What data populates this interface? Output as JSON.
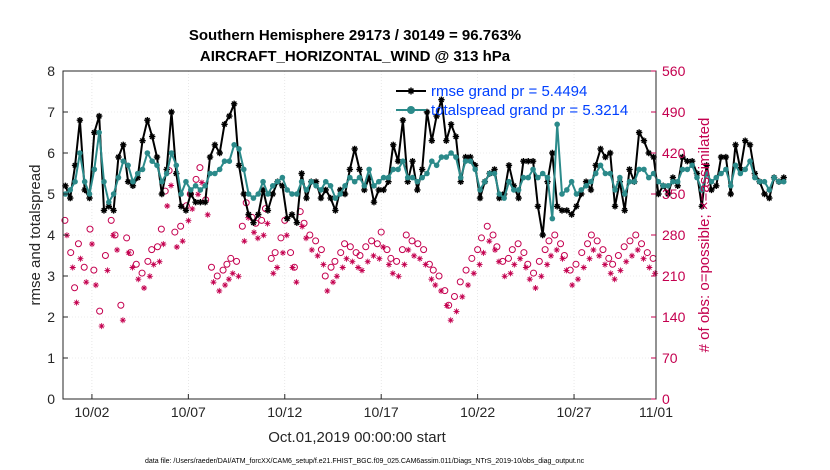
{
  "chart_data": {
    "type": "line",
    "title_line1": "Southern Hemisphere 29173 / 30149 = 96.763%",
    "title_line2": "AIRCRAFT_HORIZONTAL_WIND @ 313 hPa",
    "xlabel": "Oct.01,2019 00:00:00 start",
    "ylabel": "rmse and totalspread",
    "ylabel_right": "# of obs: o=possible; ×=assimilated",
    "footer": "data file: /Users/raeder/DAI/ATM_forcXX/CAM6_setup/f.e21.FHIST_BGC.f09_025.CAM6assim.011/Diags_NTrS_2019-10/obs_diag_output.nc",
    "xlim": [
      0.5,
      31.25
    ],
    "ylim": [
      0,
      8
    ],
    "ylim_right": [
      0,
      560
    ],
    "x_ticks": [
      {
        "v": 2,
        "label": "10/02"
      },
      {
        "v": 7,
        "label": "10/07"
      },
      {
        "v": 12,
        "label": "10/12"
      },
      {
        "v": 17,
        "label": "10/17"
      },
      {
        "v": 22,
        "label": "10/22"
      },
      {
        "v": 27,
        "label": "10/27"
      },
      {
        "v": 32,
        "label": "11/01"
      }
    ],
    "y_ticks": [
      "0",
      "1",
      "2",
      "3",
      "4",
      "5",
      "6",
      "7",
      "8"
    ],
    "y_ticks_right": [
      "0",
      "70",
      "140",
      "210",
      "280",
      "350",
      "420",
      "490",
      "560"
    ],
    "x_start": 0.625,
    "x_step": 0.25,
    "series": [
      {
        "name": "rmse grand pr = 5.4494",
        "color": "#000000",
        "marker": "star",
        "values": [
          5.2,
          4.9,
          5.7,
          6.8,
          5.1,
          4.9,
          6.5,
          6.9,
          4.6,
          4.7,
          4.6,
          5.9,
          6.2,
          5.3,
          5.2,
          5.4,
          6.3,
          6.8,
          6.4,
          5.9,
          5.0,
          5.6,
          7.0,
          5.5,
          4.7,
          4.6,
          5.0,
          4.8,
          4.8,
          4.8,
          5.9,
          6.2,
          6.0,
          6.7,
          6.9,
          7.2,
          5.7,
          5.0,
          4.5,
          4.3,
          4.5,
          5.1,
          4.6,
          5.0,
          5.3,
          5.2,
          4.4,
          4.5,
          4.3,
          5.5,
          4.9,
          5.3,
          5.3,
          4.9,
          5.1,
          4.9,
          4.6,
          5.1,
          5.0,
          5.6,
          6.1,
          5.6,
          5.1,
          5.4,
          4.8,
          5.1,
          5.1,
          5.3,
          6.2,
          5.8,
          6.8,
          5.3,
          5.8,
          5.1,
          5.6,
          7.0,
          6.3,
          6.9,
          7.3,
          6.3,
          6.7,
          6.4,
          5.3,
          5.9,
          5.9,
          5.7,
          4.9,
          5.3,
          5.5,
          5.6,
          4.9,
          5.0,
          5.7,
          5.2,
          4.9,
          5.8,
          5.8,
          5.8,
          4.7,
          4.0,
          5.3,
          6.0,
          4.7,
          4.6,
          4.6,
          4.5,
          4.7,
          5.0,
          5.3,
          5.1,
          5.7,
          6.1,
          5.9,
          6.0,
          4.7,
          5.3,
          4.6,
          5.6,
          5.3,
          6.5,
          6.3,
          6.0,
          5.9,
          5.0,
          5.2,
          5.0,
          5.4,
          5.2,
          5.9,
          5.8,
          5.8,
          5.5,
          4.7,
          5.7,
          5.1,
          5.2,
          5.9,
          5.9,
          5.0,
          6.2,
          5.6,
          6.3,
          6.2,
          5.5,
          5.3,
          5.0,
          4.9,
          5.4,
          5.3,
          5.4
        ]
      },
      {
        "name": "totalspread grand pr = 5.3214",
        "color": "#2b8a8a",
        "marker": "dot",
        "values": [
          5.0,
          5.1,
          5.3,
          6.0,
          5.3,
          5.0,
          5.6,
          6.5,
          5.3,
          4.8,
          5.0,
          5.4,
          5.8,
          5.7,
          5.3,
          5.5,
          5.6,
          6.0,
          5.8,
          5.7,
          5.3,
          5.5,
          6.0,
          5.7,
          5.0,
          5.3,
          5.1,
          5.2,
          5.1,
          5.2,
          5.5,
          5.5,
          5.6,
          5.8,
          5.8,
          6.2,
          6.1,
          5.6,
          5.0,
          4.9,
          5.0,
          5.3,
          5.0,
          5.2,
          5.3,
          5.4,
          5.1,
          5.0,
          5.0,
          5.3,
          5.1,
          5.3,
          5.2,
          5.1,
          5.3,
          5.2,
          4.9,
          5.0,
          5.2,
          5.4,
          5.3,
          5.4,
          5.2,
          5.6,
          5.2,
          5.3,
          5.4,
          5.4,
          5.6,
          5.6,
          5.8,
          5.4,
          5.4,
          5.3,
          5.4,
          5.5,
          5.8,
          5.7,
          5.9,
          5.9,
          6.0,
          5.9,
          5.4,
          5.8,
          5.8,
          5.6,
          5.1,
          5.3,
          5.5,
          5.5,
          5.0,
          4.9,
          5.3,
          5.1,
          5.1,
          5.4,
          5.4,
          5.6,
          5.4,
          5.5,
          5.4,
          4.4,
          6.7,
          5.0,
          5.1,
          5.3,
          5.0,
          5.1,
          5.2,
          5.3,
          5.5,
          5.7,
          5.5,
          5.5,
          5.1,
          5.4,
          5.0,
          5.3,
          5.3,
          5.6,
          5.6,
          5.4,
          5.5,
          5.3,
          5.2,
          5.2,
          5.3,
          5.3,
          5.6,
          5.6,
          5.7,
          5.4,
          5.1,
          5.5,
          5.3,
          5.4,
          5.5,
          5.6,
          5.2,
          5.7,
          5.5,
          5.6,
          5.8,
          5.4,
          5.3,
          5.3,
          5.1,
          5.4,
          5.3,
          5.3
        ]
      }
    ],
    "obs_possible": [
      {
        "x": 0.6,
        "v": 305
      },
      {
        "x": 0.9,
        "v": 250
      },
      {
        "x": 1.1,
        "v": 190
      },
      {
        "x": 1.3,
        "v": 265
      },
      {
        "x": 1.6,
        "v": 225
      },
      {
        "x": 1.9,
        "v": 290
      },
      {
        "x": 2.1,
        "v": 220
      },
      {
        "x": 2.4,
        "v": 150
      },
      {
        "x": 2.7,
        "v": 245
      },
      {
        "x": 3.0,
        "v": 305
      },
      {
        "x": 3.2,
        "v": 280
      },
      {
        "x": 3.5,
        "v": 160
      },
      {
        "x": 3.8,
        "v": 275
      },
      {
        "x": 4.0,
        "v": 250
      },
      {
        "x": 4.3,
        "v": 230
      },
      {
        "x": 4.6,
        "v": 215
      },
      {
        "x": 4.9,
        "v": 235
      },
      {
        "x": 5.1,
        "v": 255
      },
      {
        "x": 5.4,
        "v": 260
      },
      {
        "x": 5.6,
        "v": 290
      },
      {
        "x": 5.8,
        "v": 355
      },
      {
        "x": 6.0,
        "v": 390
      },
      {
        "x": 6.3,
        "v": 285
      },
      {
        "x": 6.6,
        "v": 295
      },
      {
        "x": 6.9,
        "v": 330
      },
      {
        "x": 7.1,
        "v": 350
      },
      {
        "x": 7.4,
        "v": 375
      },
      {
        "x": 7.6,
        "v": 395
      },
      {
        "x": 7.9,
        "v": 340
      },
      {
        "x": 8.2,
        "v": 225
      },
      {
        "x": 8.5,
        "v": 210
      },
      {
        "x": 8.8,
        "v": 220
      },
      {
        "x": 9.0,
        "v": 230
      },
      {
        "x": 9.2,
        "v": 240
      },
      {
        "x": 9.5,
        "v": 235
      },
      {
        "x": 9.8,
        "v": 295
      },
      {
        "x": 10.0,
        "v": 335
      },
      {
        "x": 10.3,
        "v": 310
      },
      {
        "x": 10.5,
        "v": 300
      },
      {
        "x": 10.8,
        "v": 305
      },
      {
        "x": 11.0,
        "v": 325
      },
      {
        "x": 11.3,
        "v": 240
      },
      {
        "x": 11.5,
        "v": 250
      },
      {
        "x": 11.8,
        "v": 275
      },
      {
        "x": 12.0,
        "v": 305
      },
      {
        "x": 12.3,
        "v": 250
      },
      {
        "x": 12.5,
        "v": 225
      },
      {
        "x": 12.8,
        "v": 320
      },
      {
        "x": 13.0,
        "v": 300
      },
      {
        "x": 13.3,
        "v": 280
      },
      {
        "x": 13.6,
        "v": 270
      },
      {
        "x": 13.9,
        "v": 255
      },
      {
        "x": 14.1,
        "v": 210
      },
      {
        "x": 14.4,
        "v": 225
      },
      {
        "x": 14.6,
        "v": 235
      },
      {
        "x": 14.9,
        "v": 250
      },
      {
        "x": 15.1,
        "v": 265
      },
      {
        "x": 15.4,
        "v": 260
      },
      {
        "x": 15.7,
        "v": 250
      },
      {
        "x": 15.9,
        "v": 245
      },
      {
        "x": 16.2,
        "v": 260
      },
      {
        "x": 16.5,
        "v": 270
      },
      {
        "x": 16.8,
        "v": 265
      },
      {
        "x": 17.0,
        "v": 285
      },
      {
        "x": 17.3,
        "v": 255
      },
      {
        "x": 17.5,
        "v": 240
      },
      {
        "x": 17.8,
        "v": 235
      },
      {
        "x": 18.1,
        "v": 255
      },
      {
        "x": 18.3,
        "v": 280
      },
      {
        "x": 18.6,
        "v": 270
      },
      {
        "x": 18.9,
        "v": 265
      },
      {
        "x": 19.2,
        "v": 255
      },
      {
        "x": 19.5,
        "v": 230
      },
      {
        "x": 19.7,
        "v": 220
      },
      {
        "x": 20.0,
        "v": 210
      },
      {
        "x": 20.3,
        "v": 185
      },
      {
        "x": 20.5,
        "v": 160
      },
      {
        "x": 20.8,
        "v": 175
      },
      {
        "x": 21.1,
        "v": 200
      },
      {
        "x": 21.4,
        "v": 220
      },
      {
        "x": 21.7,
        "v": 240
      },
      {
        "x": 22.0,
        "v": 255
      },
      {
        "x": 22.2,
        "v": 275
      },
      {
        "x": 22.5,
        "v": 295
      },
      {
        "x": 22.8,
        "v": 280
      },
      {
        "x": 23.0,
        "v": 260
      },
      {
        "x": 23.3,
        "v": 235
      },
      {
        "x": 23.6,
        "v": 240
      },
      {
        "x": 23.8,
        "v": 255
      },
      {
        "x": 24.1,
        "v": 265
      },
      {
        "x": 24.4,
        "v": 250
      },
      {
        "x": 24.6,
        "v": 230
      },
      {
        "x": 24.9,
        "v": 215
      },
      {
        "x": 25.2,
        "v": 235
      },
      {
        "x": 25.5,
        "v": 255
      },
      {
        "x": 25.7,
        "v": 270
      },
      {
        "x": 26.0,
        "v": 280
      },
      {
        "x": 26.3,
        "v": 265
      },
      {
        "x": 26.5,
        "v": 245
      },
      {
        "x": 26.8,
        "v": 220
      },
      {
        "x": 27.1,
        "v": 230
      },
      {
        "x": 27.4,
        "v": 250
      },
      {
        "x": 27.7,
        "v": 265
      },
      {
        "x": 27.9,
        "v": 280
      },
      {
        "x": 28.2,
        "v": 270
      },
      {
        "x": 28.5,
        "v": 255
      },
      {
        "x": 28.8,
        "v": 240
      },
      {
        "x": 29.0,
        "v": 230
      },
      {
        "x": 29.3,
        "v": 245
      },
      {
        "x": 29.6,
        "v": 260
      },
      {
        "x": 29.9,
        "v": 270
      },
      {
        "x": 30.2,
        "v": 280
      },
      {
        "x": 30.5,
        "v": 265
      },
      {
        "x": 30.8,
        "v": 250
      },
      {
        "x": 31.1,
        "v": 240
      }
    ],
    "obs_assimilated": [
      {
        "x": 0.6,
        "v": 300
      },
      {
        "x": 0.9,
        "v": 245
      },
      {
        "x": 1.1,
        "v": 185
      },
      {
        "x": 1.3,
        "v": 260
      },
      {
        "x": 1.6,
        "v": 220
      },
      {
        "x": 1.9,
        "v": 285
      },
      {
        "x": 2.1,
        "v": 215
      },
      {
        "x": 2.4,
        "v": 145
      },
      {
        "x": 2.7,
        "v": 240
      },
      {
        "x": 3.0,
        "v": 300
      },
      {
        "x": 3.2,
        "v": 275
      },
      {
        "x": 3.5,
        "v": 155
      },
      {
        "x": 3.8,
        "v": 270
      },
      {
        "x": 4.0,
        "v": 245
      },
      {
        "x": 4.3,
        "v": 225
      },
      {
        "x": 4.6,
        "v": 210
      },
      {
        "x": 4.9,
        "v": 230
      },
      {
        "x": 5.1,
        "v": 250
      },
      {
        "x": 5.4,
        "v": 255
      },
      {
        "x": 5.6,
        "v": 285
      },
      {
        "x": 5.8,
        "v": 350
      },
      {
        "x": 6.0,
        "v": 385
      },
      {
        "x": 6.3,
        "v": 280
      },
      {
        "x": 6.6,
        "v": 290
      },
      {
        "x": 6.9,
        "v": 325
      },
      {
        "x": 7.1,
        "v": 345
      },
      {
        "x": 7.4,
        "v": 370
      },
      {
        "x": 7.6,
        "v": 390
      },
      {
        "x": 7.9,
        "v": 335
      },
      {
        "x": 8.2,
        "v": 220
      },
      {
        "x": 8.5,
        "v": 205
      },
      {
        "x": 8.8,
        "v": 215
      },
      {
        "x": 9.0,
        "v": 225
      },
      {
        "x": 9.2,
        "v": 235
      },
      {
        "x": 9.5,
        "v": 230
      },
      {
        "x": 9.8,
        "v": 290
      },
      {
        "x": 10.0,
        "v": 330
      },
      {
        "x": 10.3,
        "v": 305
      },
      {
        "x": 10.5,
        "v": 295
      },
      {
        "x": 10.8,
        "v": 300
      },
      {
        "x": 11.0,
        "v": 320
      },
      {
        "x": 11.3,
        "v": 235
      },
      {
        "x": 11.5,
        "v": 245
      },
      {
        "x": 11.8,
        "v": 270
      },
      {
        "x": 12.0,
        "v": 300
      },
      {
        "x": 12.3,
        "v": 245
      },
      {
        "x": 12.5,
        "v": 220
      },
      {
        "x": 12.8,
        "v": 315
      },
      {
        "x": 13.0,
        "v": 295
      },
      {
        "x": 13.3,
        "v": 275
      },
      {
        "x": 13.6,
        "v": 265
      },
      {
        "x": 13.9,
        "v": 250
      },
      {
        "x": 14.1,
        "v": 205
      },
      {
        "x": 14.4,
        "v": 220
      },
      {
        "x": 14.6,
        "v": 230
      },
      {
        "x": 14.9,
        "v": 245
      },
      {
        "x": 15.1,
        "v": 260
      },
      {
        "x": 15.4,
        "v": 255
      },
      {
        "x": 15.7,
        "v": 245
      },
      {
        "x": 15.9,
        "v": 240
      },
      {
        "x": 16.2,
        "v": 255
      },
      {
        "x": 16.5,
        "v": 265
      },
      {
        "x": 16.8,
        "v": 260
      },
      {
        "x": 17.0,
        "v": 280
      },
      {
        "x": 17.3,
        "v": 250
      },
      {
        "x": 17.5,
        "v": 235
      },
      {
        "x": 17.8,
        "v": 230
      },
      {
        "x": 18.1,
        "v": 250
      },
      {
        "x": 18.3,
        "v": 275
      },
      {
        "x": 18.6,
        "v": 265
      },
      {
        "x": 18.9,
        "v": 260
      },
      {
        "x": 19.2,
        "v": 250
      },
      {
        "x": 19.5,
        "v": 225
      },
      {
        "x": 19.7,
        "v": 215
      },
      {
        "x": 20.0,
        "v": 205
      },
      {
        "x": 20.3,
        "v": 180
      },
      {
        "x": 20.5,
        "v": 155
      },
      {
        "x": 20.8,
        "v": 170
      },
      {
        "x": 21.1,
        "v": 195
      },
      {
        "x": 21.4,
        "v": 215
      },
      {
        "x": 21.7,
        "v": 235
      },
      {
        "x": 22.0,
        "v": 250
      },
      {
        "x": 22.2,
        "v": 270
      },
      {
        "x": 22.5,
        "v": 290
      },
      {
        "x": 22.8,
        "v": 275
      },
      {
        "x": 23.0,
        "v": 255
      },
      {
        "x": 23.3,
        "v": 230
      },
      {
        "x": 23.6,
        "v": 235
      },
      {
        "x": 23.8,
        "v": 250
      },
      {
        "x": 24.1,
        "v": 260
      },
      {
        "x": 24.4,
        "v": 245
      },
      {
        "x": 24.6,
        "v": 225
      },
      {
        "x": 24.9,
        "v": 210
      },
      {
        "x": 25.2,
        "v": 230
      },
      {
        "x": 25.5,
        "v": 250
      },
      {
        "x": 25.7,
        "v": 265
      },
      {
        "x": 26.0,
        "v": 275
      },
      {
        "x": 26.3,
        "v": 260
      },
      {
        "x": 26.5,
        "v": 240
      },
      {
        "x": 26.8,
        "v": 215
      },
      {
        "x": 27.1,
        "v": 225
      },
      {
        "x": 27.4,
        "v": 245
      },
      {
        "x": 27.7,
        "v": 260
      },
      {
        "x": 27.9,
        "v": 275
      },
      {
        "x": 28.2,
        "v": 265
      },
      {
        "x": 28.5,
        "v": 250
      },
      {
        "x": 28.8,
        "v": 235
      },
      {
        "x": 29.0,
        "v": 225
      },
      {
        "x": 29.3,
        "v": 240
      },
      {
        "x": 29.6,
        "v": 255
      },
      {
        "x": 29.9,
        "v": 265
      },
      {
        "x": 30.2,
        "v": 275
      },
      {
        "x": 30.5,
        "v": 260
      },
      {
        "x": 30.8,
        "v": 245
      },
      {
        "x": 31.1,
        "v": 235
      }
    ],
    "obs_color": "#c4004f",
    "grid": true,
    "legend_position": "top-right"
  }
}
